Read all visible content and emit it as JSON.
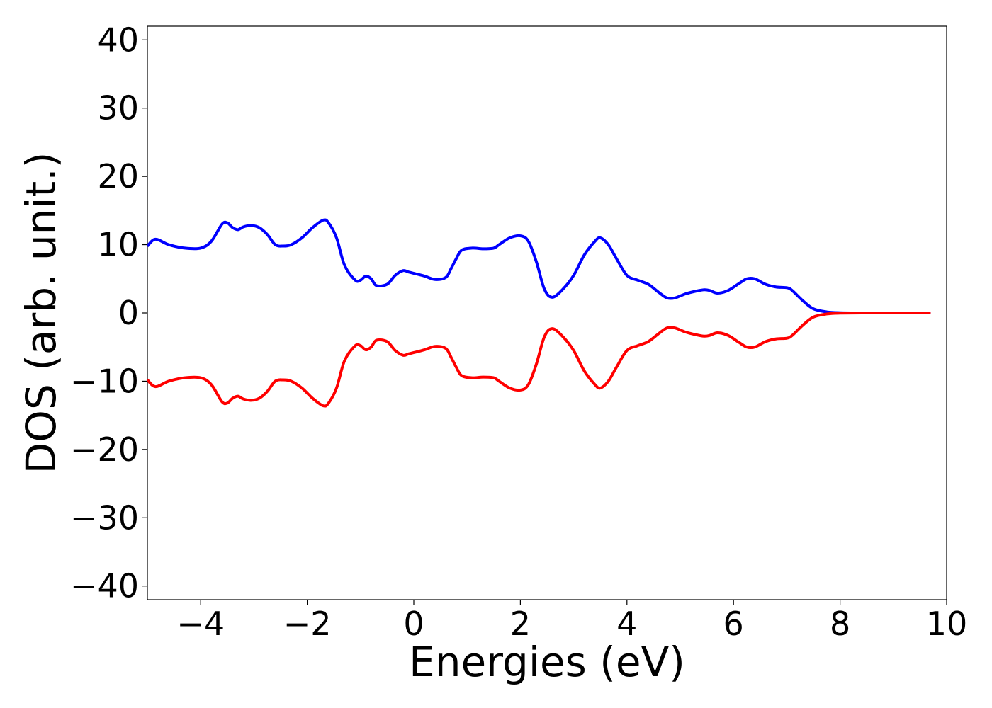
{
  "chart_data": {
    "type": "line",
    "title": "",
    "xlabel": "Energies (eV)",
    "ylabel": "DOS (arb. unit.)",
    "xlim": [
      -5,
      10
    ],
    "ylim": [
      -42,
      42
    ],
    "xticks": [
      -4,
      -2,
      0,
      2,
      4,
      6,
      8,
      10
    ],
    "xtick_labels": [
      "−4",
      "−2",
      "0",
      "2",
      "4",
      "6",
      "8",
      "10"
    ],
    "yticks": [
      40,
      30,
      20,
      10,
      0,
      -10,
      -20,
      -30,
      -40
    ],
    "ytick_labels": [
      "40",
      "30",
      "20",
      "10",
      "0",
      "−10",
      "−20",
      "−30",
      "−40"
    ],
    "grid": false,
    "legend": "none",
    "series": [
      {
        "color": "#0000ff",
        "x": [
          -5.0,
          -4.85,
          -4.6,
          -4.3,
          -4.0,
          -3.8,
          -3.6,
          -3.5,
          -3.4,
          -3.3,
          -3.2,
          -3.05,
          -2.9,
          -2.75,
          -2.6,
          -2.45,
          -2.3,
          -2.1,
          -1.9,
          -1.7,
          -1.6,
          -1.45,
          -1.3,
          -1.1,
          -1.0,
          -0.9,
          -0.8,
          -0.7,
          -0.5,
          -0.35,
          -0.2,
          -0.1,
          0.0,
          0.2,
          0.4,
          0.6,
          0.7,
          0.8,
          0.9,
          1.1,
          1.3,
          1.5,
          1.6,
          1.8,
          2.0,
          2.15,
          2.3,
          2.45,
          2.6,
          2.8,
          3.0,
          3.2,
          3.4,
          3.5,
          3.65,
          3.8,
          4.0,
          4.2,
          4.4,
          4.6,
          4.75,
          4.9,
          5.1,
          5.3,
          5.45,
          5.55,
          5.7,
          5.9,
          6.1,
          6.25,
          6.4,
          6.6,
          6.8,
          7.0,
          7.1,
          7.3,
          7.5,
          7.75,
          8.0,
          8.5,
          9.0,
          9.7
        ],
        "values": [
          9.8,
          10.8,
          10.0,
          9.5,
          9.5,
          10.5,
          13.0,
          13.2,
          12.5,
          12.2,
          12.6,
          12.8,
          12.5,
          11.5,
          10.0,
          9.8,
          10.0,
          11.0,
          12.5,
          13.6,
          13.2,
          11.0,
          7.0,
          4.8,
          4.8,
          5.4,
          5.0,
          4.0,
          4.2,
          5.5,
          6.2,
          6.0,
          5.8,
          5.4,
          4.9,
          5.2,
          6.5,
          8.0,
          9.2,
          9.5,
          9.4,
          9.5,
          10.0,
          11.0,
          11.3,
          10.5,
          7.5,
          3.5,
          2.3,
          3.5,
          5.5,
          8.5,
          10.5,
          11.0,
          10.0,
          8.0,
          5.5,
          4.8,
          4.2,
          3.0,
          2.2,
          2.2,
          2.8,
          3.2,
          3.4,
          3.3,
          2.9,
          3.3,
          4.3,
          5.0,
          5.0,
          4.2,
          3.8,
          3.7,
          3.3,
          1.8,
          0.6,
          0.15,
          0.03,
          0.0,
          0.0,
          0.0
        ]
      },
      {
        "color": "#ff0000",
        "x": [
          -5.0,
          -4.85,
          -4.6,
          -4.3,
          -4.0,
          -3.8,
          -3.6,
          -3.5,
          -3.4,
          -3.3,
          -3.2,
          -3.05,
          -2.9,
          -2.75,
          -2.6,
          -2.45,
          -2.3,
          -2.1,
          -1.9,
          -1.7,
          -1.6,
          -1.45,
          -1.3,
          -1.1,
          -1.0,
          -0.9,
          -0.8,
          -0.7,
          -0.5,
          -0.35,
          -0.2,
          -0.1,
          0.0,
          0.2,
          0.4,
          0.6,
          0.7,
          0.8,
          0.9,
          1.1,
          1.3,
          1.5,
          1.6,
          1.8,
          2.0,
          2.15,
          2.3,
          2.45,
          2.6,
          2.8,
          3.0,
          3.2,
          3.4,
          3.5,
          3.65,
          3.8,
          4.0,
          4.2,
          4.4,
          4.6,
          4.75,
          4.9,
          5.1,
          5.3,
          5.45,
          5.55,
          5.7,
          5.9,
          6.1,
          6.25,
          6.4,
          6.6,
          6.8,
          7.0,
          7.1,
          7.3,
          7.5,
          7.75,
          8.0,
          8.5,
          9.0,
          9.7
        ],
        "values": [
          -9.8,
          -10.8,
          -10.0,
          -9.5,
          -9.5,
          -10.5,
          -13.0,
          -13.2,
          -12.5,
          -12.2,
          -12.6,
          -12.8,
          -12.5,
          -11.5,
          -10.0,
          -9.8,
          -10.0,
          -11.0,
          -12.5,
          -13.6,
          -13.2,
          -11.0,
          -7.0,
          -4.8,
          -4.8,
          -5.4,
          -5.0,
          -4.0,
          -4.2,
          -5.5,
          -6.2,
          -6.0,
          -5.8,
          -5.4,
          -4.9,
          -5.2,
          -6.5,
          -8.0,
          -9.2,
          -9.5,
          -9.4,
          -9.5,
          -10.0,
          -11.0,
          -11.3,
          -10.5,
          -7.5,
          -3.5,
          -2.3,
          -3.5,
          -5.5,
          -8.5,
          -10.5,
          -11.0,
          -10.0,
          -8.0,
          -5.5,
          -4.8,
          -4.2,
          -3.0,
          -2.2,
          -2.2,
          -2.8,
          -3.2,
          -3.4,
          -3.3,
          -2.9,
          -3.3,
          -4.3,
          -5.0,
          -5.0,
          -4.2,
          -3.8,
          -3.7,
          -3.3,
          -1.8,
          -0.6,
          -0.15,
          -0.03,
          0.0,
          0.0,
          0.0
        ]
      }
    ]
  }
}
